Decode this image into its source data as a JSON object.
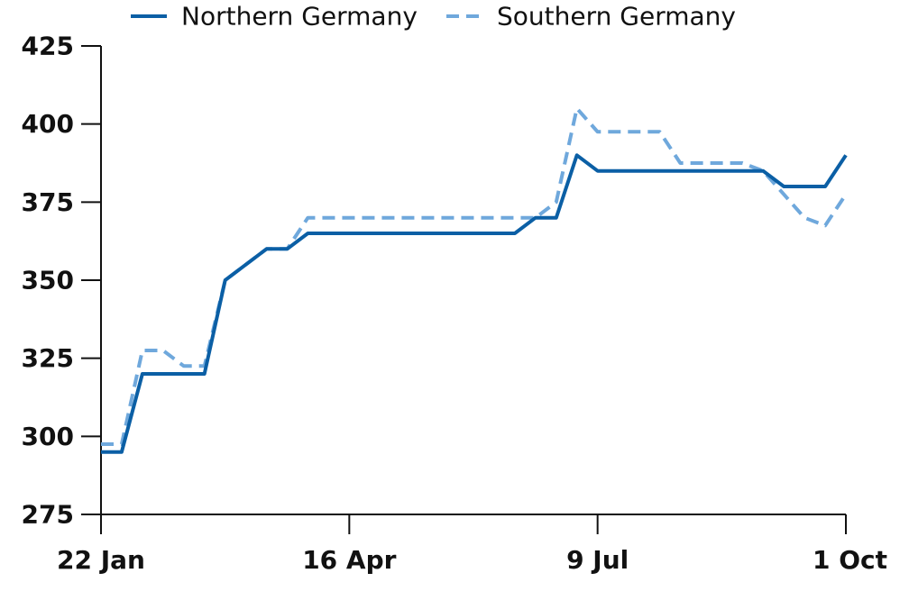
{
  "chart_data": {
    "type": "line",
    "title": "",
    "xlabel": "",
    "ylabel": "",
    "ylim": [
      275,
      425
    ],
    "yticks": [
      275,
      300,
      325,
      350,
      375,
      400,
      425
    ],
    "xlim": [
      "2022-01-22",
      "2022-10-01"
    ],
    "xticks": [
      {
        "date": "2022-01-22",
        "label": "22 Jan"
      },
      {
        "date": "2022-04-16",
        "label": "16 Apr"
      },
      {
        "date": "2022-07-09",
        "label": "9 Jul"
      },
      {
        "date": "2022-10-01",
        "label": "1 Oct"
      }
    ],
    "grid": false,
    "legend": "top",
    "series": [
      {
        "name": "Northern Germany",
        "color": "#0b5fa5",
        "dash": "solid",
        "points": [
          [
            "2022-01-22",
            295
          ],
          [
            "2022-01-29",
            295
          ],
          [
            "2022-02-05",
            320
          ],
          [
            "2022-02-12",
            320
          ],
          [
            "2022-02-19",
            320
          ],
          [
            "2022-02-26",
            320
          ],
          [
            "2022-03-05",
            350
          ],
          [
            "2022-03-12",
            355
          ],
          [
            "2022-03-19",
            360
          ],
          [
            "2022-03-26",
            360
          ],
          [
            "2022-04-02",
            365
          ],
          [
            "2022-04-09",
            365
          ],
          [
            "2022-04-16",
            365
          ],
          [
            "2022-04-23",
            365
          ],
          [
            "2022-04-30",
            365
          ],
          [
            "2022-05-07",
            365
          ],
          [
            "2022-05-14",
            365
          ],
          [
            "2022-05-21",
            365
          ],
          [
            "2022-05-28",
            365
          ],
          [
            "2022-06-04",
            365
          ],
          [
            "2022-06-11",
            365
          ],
          [
            "2022-06-18",
            370
          ],
          [
            "2022-06-25",
            370
          ],
          [
            "2022-07-02",
            390
          ],
          [
            "2022-07-09",
            385
          ],
          [
            "2022-07-16",
            385
          ],
          [
            "2022-07-23",
            385
          ],
          [
            "2022-07-30",
            385
          ],
          [
            "2022-08-06",
            385
          ],
          [
            "2022-08-13",
            385
          ],
          [
            "2022-08-20",
            385
          ],
          [
            "2022-08-27",
            385
          ],
          [
            "2022-09-03",
            385
          ],
          [
            "2022-09-10",
            380
          ],
          [
            "2022-09-17",
            380
          ],
          [
            "2022-09-24",
            380
          ],
          [
            "2022-10-01",
            390
          ]
        ]
      },
      {
        "name": "Southern Germany",
        "color": "#6fa8dc",
        "dash": "dashed",
        "points": [
          [
            "2022-01-22",
            297.5
          ],
          [
            "2022-01-29",
            297.5
          ],
          [
            "2022-02-05",
            327.5
          ],
          [
            "2022-02-12",
            327.5
          ],
          [
            "2022-02-19",
            322.5
          ],
          [
            "2022-02-26",
            322.5
          ],
          [
            "2022-03-05",
            350
          ],
          [
            "2022-03-12",
            355
          ],
          [
            "2022-03-19",
            360
          ],
          [
            "2022-03-26",
            360
          ],
          [
            "2022-04-02",
            370
          ],
          [
            "2022-04-09",
            370
          ],
          [
            "2022-04-16",
            370
          ],
          [
            "2022-04-23",
            370
          ],
          [
            "2022-04-30",
            370
          ],
          [
            "2022-05-07",
            370
          ],
          [
            "2022-05-14",
            370
          ],
          [
            "2022-05-21",
            370
          ],
          [
            "2022-05-28",
            370
          ],
          [
            "2022-06-04",
            370
          ],
          [
            "2022-06-11",
            370
          ],
          [
            "2022-06-18",
            370
          ],
          [
            "2022-06-25",
            375
          ],
          [
            "2022-07-02",
            405
          ],
          [
            "2022-07-09",
            397.5
          ],
          [
            "2022-07-16",
            397.5
          ],
          [
            "2022-07-23",
            397.5
          ],
          [
            "2022-07-30",
            397.5
          ],
          [
            "2022-08-06",
            387.5
          ],
          [
            "2022-08-13",
            387.5
          ],
          [
            "2022-08-20",
            387.5
          ],
          [
            "2022-08-27",
            387.5
          ],
          [
            "2022-09-03",
            385
          ],
          [
            "2022-09-10",
            377.5
          ],
          [
            "2022-09-17",
            370
          ],
          [
            "2022-09-24",
            367.5
          ],
          [
            "2022-10-01",
            377.5
          ]
        ]
      }
    ]
  }
}
